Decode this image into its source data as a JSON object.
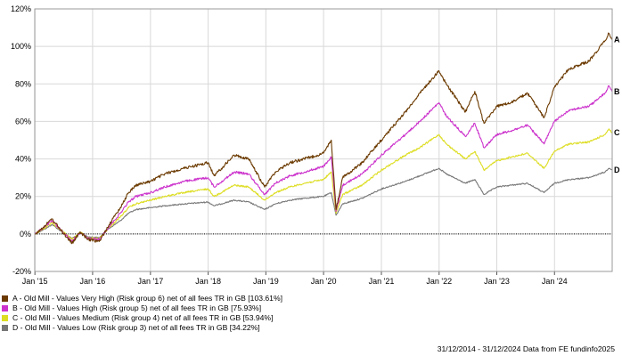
{
  "chart_data": {
    "type": "line",
    "x_range": [
      "2015-01-01",
      "2024-12-31"
    ],
    "xlim": [
      "2014-12-31",
      "2024-12-31"
    ],
    "ylim": [
      -20,
      120
    ],
    "y_ticks": [
      "-20%",
      "0%",
      "20%",
      "40%",
      "60%",
      "80%",
      "100%",
      "120%"
    ],
    "y_tick_values": [
      -20,
      0,
      20,
      40,
      60,
      80,
      100,
      120
    ],
    "x_ticks": [
      "Jan '15",
      "Jan '16",
      "Jan '17",
      "Jan '18",
      "Jan '19",
      "Jan '20",
      "Jan '21",
      "Jan '22",
      "Jan '23",
      "Jan '24"
    ],
    "x_tick_values": [
      "2015-01-01",
      "2016-01-01",
      "2017-01-01",
      "2018-01-01",
      "2019-01-01",
      "2020-01-01",
      "2021-01-01",
      "2022-01-01",
      "2023-01-01",
      "2024-01-01"
    ],
    "grid": true,
    "baseline": 0,
    "series": [
      {
        "name": "A - Old Mill - Values Very High (Risk group 6) net of all fees TR in GB [103.61%]",
        "end_label": "A",
        "color": "#6b3a00",
        "points": [
          [
            "2015-01-01",
            0
          ],
          [
            "2015-03-01",
            4
          ],
          [
            "2015-04-20",
            8
          ],
          [
            "2015-06-15",
            2
          ],
          [
            "2015-08-24",
            -5
          ],
          [
            "2015-10-15",
            1
          ],
          [
            "2015-12-01",
            -3
          ],
          [
            "2016-02-12",
            -4
          ],
          [
            "2016-04-15",
            5
          ],
          [
            "2016-06-24",
            14
          ],
          [
            "2016-08-15",
            22
          ],
          [
            "2016-10-01",
            26
          ],
          [
            "2016-12-31",
            28
          ],
          [
            "2017-04-01",
            32
          ],
          [
            "2017-08-01",
            35
          ],
          [
            "2017-12-31",
            38
          ],
          [
            "2018-02-08",
            31
          ],
          [
            "2018-06-15",
            42
          ],
          [
            "2018-09-15",
            40
          ],
          [
            "2018-12-24",
            25
          ],
          [
            "2019-03-01",
            33
          ],
          [
            "2019-06-01",
            38
          ],
          [
            "2019-09-01",
            40
          ],
          [
            "2019-12-31",
            43
          ],
          [
            "2020-02-19",
            50
          ],
          [
            "2020-03-20",
            13
          ],
          [
            "2020-05-01",
            30
          ],
          [
            "2020-09-01",
            38
          ],
          [
            "2020-12-31",
            50
          ],
          [
            "2021-06-01",
            65
          ],
          [
            "2021-09-01",
            75
          ],
          [
            "2021-12-31",
            87
          ],
          [
            "2022-02-15",
            80
          ],
          [
            "2022-06-16",
            65
          ],
          [
            "2022-08-15",
            76
          ],
          [
            "2022-10-12",
            59
          ],
          [
            "2022-12-31",
            68
          ],
          [
            "2023-04-01",
            70
          ],
          [
            "2023-07-15",
            75
          ],
          [
            "2023-10-27",
            62
          ],
          [
            "2023-12-31",
            78
          ],
          [
            "2024-04-01",
            88
          ],
          [
            "2024-08-05",
            92
          ],
          [
            "2024-11-15",
            103
          ],
          [
            "2024-12-10",
            107
          ],
          [
            "2024-12-31",
            103.61
          ]
        ]
      },
      {
        "name": "B - Old Mill - Values High (Risk group 5) net of all fees TR in GB [75.93%]",
        "end_label": "B",
        "color": "#cc33cc",
        "points": [
          [
            "2015-01-01",
            0
          ],
          [
            "2015-03-01",
            3.5
          ],
          [
            "2015-04-20",
            7
          ],
          [
            "2015-06-15",
            2
          ],
          [
            "2015-08-24",
            -4
          ],
          [
            "2015-10-15",
            1
          ],
          [
            "2015-12-01",
            -2.5
          ],
          [
            "2016-02-12",
            -3
          ],
          [
            "2016-04-15",
            4
          ],
          [
            "2016-06-24",
            11
          ],
          [
            "2016-08-15",
            17
          ],
          [
            "2016-10-01",
            20
          ],
          [
            "2016-12-31",
            22
          ],
          [
            "2017-04-01",
            25
          ],
          [
            "2017-08-01",
            28
          ],
          [
            "2017-12-31",
            30
          ],
          [
            "2018-02-08",
            25
          ],
          [
            "2018-06-15",
            33
          ],
          [
            "2018-09-15",
            32
          ],
          [
            "2018-12-24",
            21
          ],
          [
            "2019-03-01",
            27
          ],
          [
            "2019-06-01",
            31
          ],
          [
            "2019-09-01",
            33
          ],
          [
            "2019-12-31",
            36
          ],
          [
            "2020-02-19",
            41
          ],
          [
            "2020-03-20",
            12
          ],
          [
            "2020-05-01",
            26
          ],
          [
            "2020-09-01",
            32
          ],
          [
            "2020-12-31",
            42
          ],
          [
            "2021-06-01",
            53
          ],
          [
            "2021-09-01",
            60
          ],
          [
            "2021-12-31",
            70
          ],
          [
            "2022-02-15",
            63
          ],
          [
            "2022-06-16",
            52
          ],
          [
            "2022-08-15",
            59
          ],
          [
            "2022-10-12",
            46
          ],
          [
            "2022-12-31",
            53
          ],
          [
            "2023-04-01",
            55
          ],
          [
            "2023-07-15",
            58
          ],
          [
            "2023-10-27",
            48
          ],
          [
            "2023-12-31",
            60
          ],
          [
            "2024-04-01",
            66
          ],
          [
            "2024-08-05",
            68
          ],
          [
            "2024-11-15",
            75
          ],
          [
            "2024-12-10",
            79
          ],
          [
            "2024-12-31",
            75.93
          ]
        ]
      },
      {
        "name": "C - Old Mill - Values Medium (Risk group 4) net of all fees TR in GB [53.94%]",
        "end_label": "C",
        "color": "#dddd22",
        "points": [
          [
            "2015-01-01",
            0
          ],
          [
            "2015-03-01",
            3
          ],
          [
            "2015-04-20",
            6
          ],
          [
            "2015-06-15",
            2
          ],
          [
            "2015-08-24",
            -3
          ],
          [
            "2015-10-15",
            1
          ],
          [
            "2015-12-01",
            -2
          ],
          [
            "2016-02-12",
            -2.5
          ],
          [
            "2016-04-15",
            3.5
          ],
          [
            "2016-06-24",
            9
          ],
          [
            "2016-08-15",
            14
          ],
          [
            "2016-10-01",
            16
          ],
          [
            "2016-12-31",
            18
          ],
          [
            "2017-04-01",
            20
          ],
          [
            "2017-08-01",
            22
          ],
          [
            "2017-12-31",
            24
          ],
          [
            "2018-02-08",
            20
          ],
          [
            "2018-06-15",
            26
          ],
          [
            "2018-09-15",
            25
          ],
          [
            "2018-12-24",
            18
          ],
          [
            "2019-03-01",
            22
          ],
          [
            "2019-06-01",
            25
          ],
          [
            "2019-09-01",
            27
          ],
          [
            "2019-12-31",
            29
          ],
          [
            "2020-02-19",
            33
          ],
          [
            "2020-03-20",
            11
          ],
          [
            "2020-05-01",
            21
          ],
          [
            "2020-09-01",
            26
          ],
          [
            "2020-12-31",
            34
          ],
          [
            "2021-06-01",
            42
          ],
          [
            "2021-09-01",
            46
          ],
          [
            "2021-12-31",
            53
          ],
          [
            "2022-02-15",
            48
          ],
          [
            "2022-06-16",
            40
          ],
          [
            "2022-08-15",
            44
          ],
          [
            "2022-10-12",
            34
          ],
          [
            "2022-12-31",
            39
          ],
          [
            "2023-04-01",
            41
          ],
          [
            "2023-07-15",
            43
          ],
          [
            "2023-10-27",
            35
          ],
          [
            "2023-12-31",
            44
          ],
          [
            "2024-04-01",
            48
          ],
          [
            "2024-08-05",
            49
          ],
          [
            "2024-11-15",
            53
          ],
          [
            "2024-12-10",
            56
          ],
          [
            "2024-12-31",
            53.94
          ]
        ]
      },
      {
        "name": "D - Old Mill - Values Low (Risk group 3) net of all fees TR in GB [34.22%]",
        "end_label": "D",
        "color": "#777777",
        "points": [
          [
            "2015-01-01",
            0
          ],
          [
            "2015-03-01",
            2.5
          ],
          [
            "2015-04-20",
            5
          ],
          [
            "2015-06-15",
            1.5
          ],
          [
            "2015-08-24",
            -2.5
          ],
          [
            "2015-10-15",
            0.5
          ],
          [
            "2015-12-01",
            -1.5
          ],
          [
            "2016-02-12",
            -2
          ],
          [
            "2016-04-15",
            3
          ],
          [
            "2016-06-24",
            7
          ],
          [
            "2016-08-15",
            11
          ],
          [
            "2016-10-01",
            13
          ],
          [
            "2016-12-31",
            14
          ],
          [
            "2017-04-01",
            15
          ],
          [
            "2017-08-01",
            16
          ],
          [
            "2017-12-31",
            17
          ],
          [
            "2018-02-08",
            15
          ],
          [
            "2018-06-15",
            18
          ],
          [
            "2018-09-15",
            17
          ],
          [
            "2018-12-24",
            13
          ],
          [
            "2019-03-01",
            16
          ],
          [
            "2019-06-01",
            18
          ],
          [
            "2019-09-01",
            19
          ],
          [
            "2019-12-31",
            20
          ],
          [
            "2020-02-19",
            22
          ],
          [
            "2020-03-20",
            10
          ],
          [
            "2020-05-01",
            16
          ],
          [
            "2020-09-01",
            19
          ],
          [
            "2020-12-31",
            24
          ],
          [
            "2021-06-01",
            28
          ],
          [
            "2021-09-01",
            31
          ],
          [
            "2021-12-31",
            35
          ],
          [
            "2022-02-15",
            32
          ],
          [
            "2022-06-16",
            27
          ],
          [
            "2022-08-15",
            29
          ],
          [
            "2022-10-12",
            21
          ],
          [
            "2022-12-31",
            25
          ],
          [
            "2023-04-01",
            26
          ],
          [
            "2023-07-15",
            27
          ],
          [
            "2023-10-27",
            22
          ],
          [
            "2023-12-31",
            27
          ],
          [
            "2024-04-01",
            29
          ],
          [
            "2024-08-05",
            30
          ],
          [
            "2024-11-15",
            33
          ],
          [
            "2024-12-10",
            35
          ],
          [
            "2024-12-31",
            34.22
          ]
        ]
      }
    ]
  },
  "footer": {
    "date_range": "31/12/2014 - 31/12/2024",
    "source": "Data from FE fundinfo2025"
  }
}
